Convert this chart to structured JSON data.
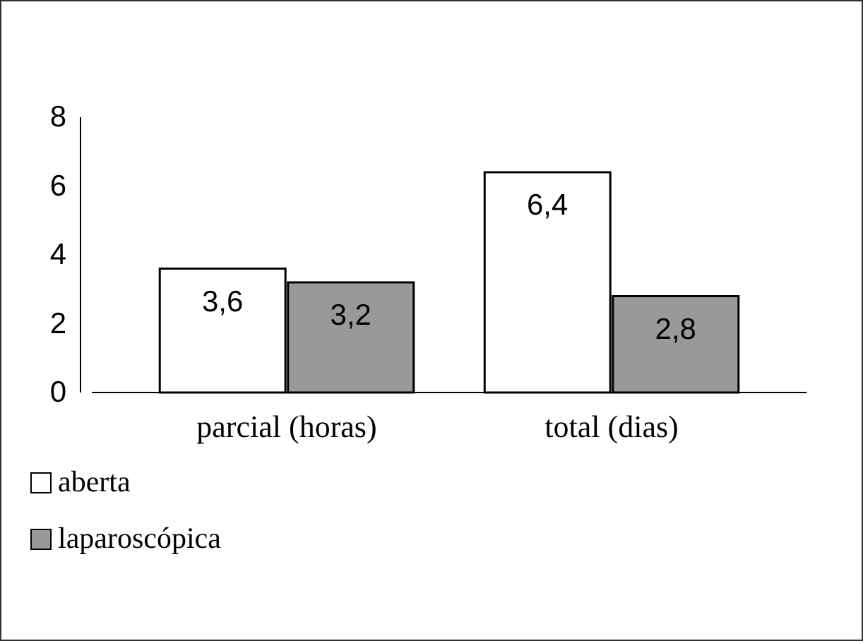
{
  "chart_data": {
    "type": "bar",
    "categories": [
      "parcial (horas)",
      "total (dias)"
    ],
    "series": [
      {
        "name": "aberta",
        "color": "#ffffff",
        "values": [
          3.6,
          6.4
        ],
        "value_labels": [
          "3,6",
          "6,4"
        ]
      },
      {
        "name": "laparoscópica",
        "color": "#999999",
        "values": [
          3.2,
          2.8
        ],
        "value_labels": [
          "3,2",
          "2,8"
        ]
      }
    ],
    "ylim": [
      0,
      8
    ],
    "yticks": [
      0,
      2,
      4,
      6,
      8
    ],
    "grid": false,
    "legend": "bottom left"
  }
}
